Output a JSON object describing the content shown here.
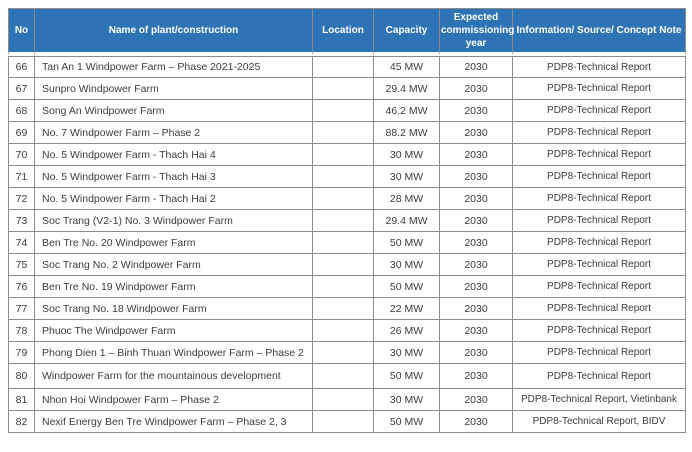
{
  "colors": {
    "header_bg": "#2e73b5",
    "header_text": "#ffffff",
    "grid_border": "#8c8c8c",
    "body_text": "#3c3c3c",
    "page_bg": "#ffffff"
  },
  "table": {
    "columns": [
      {
        "key": "no",
        "label": "No"
      },
      {
        "key": "name",
        "label": "Name of plant/construction"
      },
      {
        "key": "location",
        "label": "Location"
      },
      {
        "key": "capacity",
        "label": "Capacity"
      },
      {
        "key": "year",
        "label": "Expected commissioning year"
      },
      {
        "key": "source",
        "label": "Information/ Source/ Concept Note"
      }
    ],
    "rows": [
      {
        "no": "66",
        "name": "Tan An 1 Windpower Farm – Phase 2021-2025",
        "location": "",
        "capacity": "45 MW",
        "year": "2030",
        "source": "PDP8-Technical Report"
      },
      {
        "no": "67",
        "name": "Sunpro Windpower Farm",
        "location": "",
        "capacity": "29.4 MW",
        "year": "2030",
        "source": "PDP8-Technical Report"
      },
      {
        "no": "68",
        "name": "Song An Windpower Farm",
        "location": "",
        "capacity": "46.2 MW",
        "year": "2030",
        "source": "PDP8-Technical Report"
      },
      {
        "no": "69",
        "name": "No. 7 Windpower Farm – Phase 2",
        "location": "",
        "capacity": "88.2 MW",
        "year": "2030",
        "source": "PDP8-Technical Report"
      },
      {
        "no": "70",
        "name": "No. 5 Windpower Farm - Thach Hai 4",
        "location": "",
        "capacity": "30 MW",
        "year": "2030",
        "source": "PDP8-Technical Report"
      },
      {
        "no": "71",
        "name": "No. 5 Windpower Farm - Thach Hai 3",
        "location": "",
        "capacity": "30 MW",
        "year": "2030",
        "source": "PDP8-Technical Report"
      },
      {
        "no": "72",
        "name": "No. 5 Windpower Farm - Thach Hai 2",
        "location": "",
        "capacity": "28 MW",
        "year": "2030",
        "source": "PDP8-Technical Report"
      },
      {
        "no": "73",
        "name": "Soc Trang (V2-1) No. 3 Windpower Farm",
        "location": "",
        "capacity": "29.4 MW",
        "year": "2030",
        "source": "PDP8-Technical Report"
      },
      {
        "no": "74",
        "name": "Ben Tre No. 20 Windpower Farm",
        "location": "",
        "capacity": "50 MW",
        "year": "2030",
        "source": "PDP8-Technical Report"
      },
      {
        "no": "75",
        "name": "Soc Trang No. 2 Windpower Farm",
        "location": "",
        "capacity": "30 MW",
        "year": "2030",
        "source": "PDP8-Technical Report"
      },
      {
        "no": "76",
        "name": "Ben Tre No. 19 Windpower Farm",
        "location": "",
        "capacity": "50 MW",
        "year": "2030",
        "source": "PDP8-Technical Report"
      },
      {
        "no": "77",
        "name": "Soc Trang No. 18 Windpower Farm",
        "location": "",
        "capacity": "22 MW",
        "year": "2030",
        "source": "PDP8-Technical Report"
      },
      {
        "no": "78",
        "name": "Phuoc The Windpower Farm",
        "location": "",
        "capacity": "26 MW",
        "year": "2030",
        "source": "PDP8-Technical Report"
      },
      {
        "no": "79",
        "name": "Phong Dien 1 – Binh Thuan Windpower Farm – Phase 2",
        "location": "",
        "capacity": "30 MW",
        "year": "2030",
        "source": "PDP8-Technical Report"
      },
      {
        "no": "80",
        "name": "Windpower Farm for the mountainous development",
        "location": "",
        "capacity": "50 MW",
        "year": "2030",
        "source": "PDP8-Technical Report"
      },
      {
        "no": "81",
        "name": "Nhon Hoi Windpower Farm – Phase 2",
        "location": "",
        "capacity": "30 MW",
        "year": "2030",
        "source": "PDP8-Technical Report, Vietinbank"
      },
      {
        "no": "82",
        "name": "Nexif Energy Ben Tre Windpower Farm – Phase 2, 3",
        "location": "",
        "capacity": "50 MW",
        "year": "2030",
        "source": "PDP8-Technical Report, BIDV"
      }
    ]
  }
}
